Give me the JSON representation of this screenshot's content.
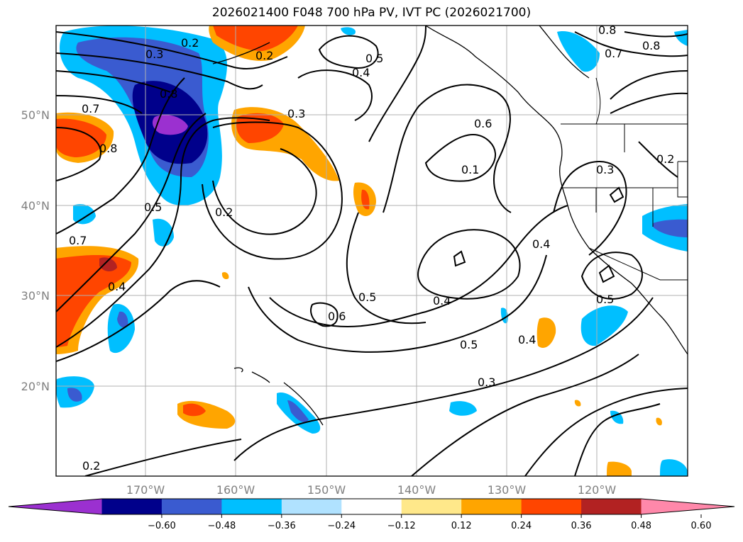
{
  "title": "2026021400 F048 700 hPa PV, IVT PC (2026021700)",
  "lon_labels": [
    "170°W",
    "160°W",
    "150°W",
    "140°W",
    "130°W",
    "120°W"
  ],
  "lat_labels": [
    "50°N",
    "40°N",
    "30°N",
    "20°N"
  ],
  "contour_labels": [
    "0.2",
    "0.3",
    "0.4",
    "0.5",
    "0.6",
    "0.7",
    "0.8",
    "0.1"
  ],
  "colorbar": {
    "ticks": [
      "−0.60",
      "−0.48",
      "−0.36",
      "−0.24",
      "−0.12",
      "0.12",
      "0.24",
      "0.36",
      "0.48",
      "0.60"
    ],
    "colors": [
      "#9b30d0",
      "#00008b",
      "#3a5bd0",
      "#00bfff",
      "#b0e2ff",
      "#ffffff",
      "#ffe88a",
      "#ffa500",
      "#ff4500",
      "#b22222",
      "#ff88aa"
    ]
  }
}
